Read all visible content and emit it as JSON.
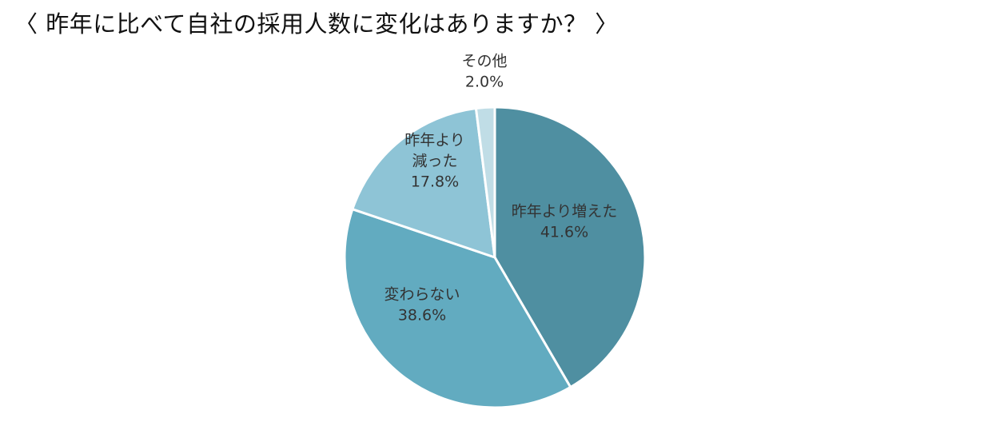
{
  "title": "〈 昨年に比べて自社の採用人数に変化はありますか？ 〉",
  "chart_data": {
    "type": "pie",
    "title": "〈 昨年に比べて自社の採用人数に変化はありますか？ 〉",
    "start_angle_deg": 0,
    "direction": "clockwise",
    "slices": [
      {
        "label": [
          "昨年より増えた"
        ],
        "value": 41.6,
        "value_label": "41.6%",
        "color": "#4f8fa1"
      },
      {
        "label": [
          "変わらない"
        ],
        "value": 38.6,
        "value_label": "38.6%",
        "color": "#62abc0"
      },
      {
        "label": [
          "昨年より",
          "減った"
        ],
        "value": 17.8,
        "value_label": "17.8%",
        "color": "#8ec4d6"
      },
      {
        "label": [
          "その他"
        ],
        "value": 2.0,
        "value_label": "2.0%",
        "color": "#c0dde6"
      }
    ],
    "legend": "none"
  }
}
